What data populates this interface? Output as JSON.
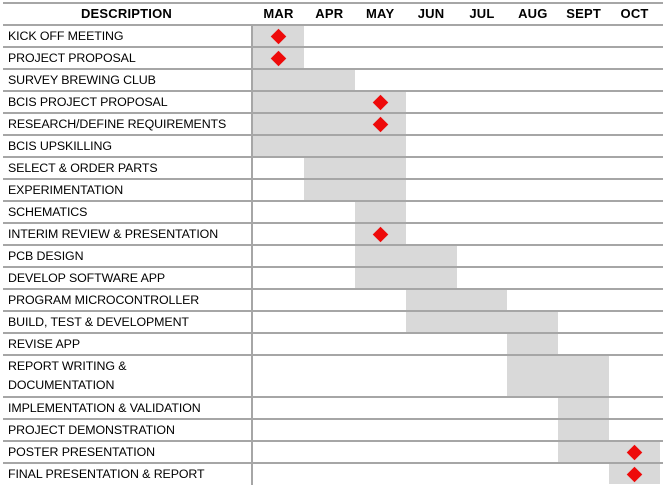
{
  "header": {
    "description_label": "DESCRIPTION"
  },
  "colors": {
    "bar_fill": "#d9d9d9",
    "grid_line": "#a6a6a6",
    "milestone": "#ee0a0a",
    "text": "#000000",
    "background": "#ffffff"
  },
  "chart_data": {
    "type": "gantt",
    "title": "",
    "months": [
      "MAR",
      "APR",
      "MAY",
      "JUN",
      "JUL",
      "AUG",
      "SEPT",
      "OCT"
    ],
    "legend": "red diamond = milestone, gray bar = task duration",
    "tasks": [
      {
        "label": "KICK OFF MEETING",
        "start": "MAR",
        "end": "MAR",
        "milestone": "MAR"
      },
      {
        "label": "PROJECT PROPOSAL",
        "start": "MAR",
        "end": "MAR",
        "milestone": "MAR"
      },
      {
        "label": "SURVEY BREWING CLUB",
        "start": "MAR",
        "end": "APR",
        "milestone": null
      },
      {
        "label": "BCIS PROJECT PROPOSAL",
        "start": "MAR",
        "end": "MAY",
        "milestone": "MAY"
      },
      {
        "label": "RESEARCH/DEFINE REQUIREMENTS",
        "start": "MAR",
        "end": "MAY",
        "milestone": "MAY"
      },
      {
        "label": "BCIS UPSKILLING",
        "start": "MAR",
        "end": "MAY",
        "milestone": null
      },
      {
        "label": "SELECT & ORDER PARTS",
        "start": "APR",
        "end": "MAY",
        "milestone": null
      },
      {
        "label": "EXPERIMENTATION",
        "start": "APR",
        "end": "MAY",
        "milestone": null
      },
      {
        "label": "SCHEMATICS",
        "start": "MAY",
        "end": "MAY",
        "milestone": null
      },
      {
        "label": "INTERIM REVIEW & PRESENTATION",
        "start": "MAY",
        "end": "MAY",
        "milestone": "MAY"
      },
      {
        "label": "PCB DESIGN",
        "start": "MAY",
        "end": "JUN",
        "milestone": null
      },
      {
        "label": "DEVELOP SOFTWARE APP",
        "start": "MAY",
        "end": "JUN",
        "milestone": null
      },
      {
        "label": "PROGRAM MICROCONTROLLER",
        "start": "JUN",
        "end": "JUL",
        "milestone": null
      },
      {
        "label": "BUILD, TEST & DEVELOPMENT",
        "start": "JUN",
        "end": "AUG",
        "milestone": null
      },
      {
        "label": "REVISE APP",
        "start": "AUG",
        "end": "AUG",
        "milestone": null
      },
      {
        "label": "REPORT WRITING & DOCUMENTATION",
        "lines": [
          "REPORT WRITING &",
          "DOCUMENTATION"
        ],
        "start": "AUG",
        "end": "SEPT",
        "milestone": null
      },
      {
        "label": "IMPLEMENTATION & VALIDATION",
        "start": "SEPT",
        "end": "SEPT",
        "milestone": null
      },
      {
        "label": "PROJECT DEMONSTRATION",
        "start": "SEPT",
        "end": "SEPT",
        "milestone": null
      },
      {
        "label": "POSTER PRESENTATION",
        "start": "SEPT",
        "end": "OCT",
        "milestone": "OCT"
      },
      {
        "label": "FINAL PRESENTATION & REPORT",
        "start": "OCT",
        "end": "OCT",
        "milestone": "OCT"
      }
    ]
  }
}
